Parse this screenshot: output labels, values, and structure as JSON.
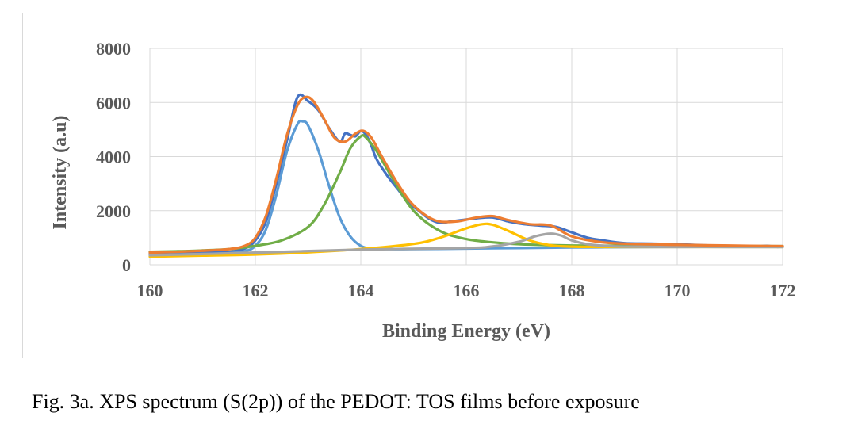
{
  "caption": "Fig. 3a. XPS spectrum (S(2p)) of the PEDOT: TOS films before exposure",
  "chart_data": {
    "type": "line",
    "title": "",
    "xlabel": "Binding Energy (eV)",
    "ylabel": "Intensity (a.u)",
    "xlim": [
      160,
      172
    ],
    "ylim": [
      0,
      8000
    ],
    "x_ticks": [
      160,
      162,
      164,
      166,
      168,
      170,
      172
    ],
    "y_ticks": [
      0,
      2000,
      4000,
      6000,
      8000
    ],
    "grid": true,
    "legend": "none",
    "series": [
      {
        "color": "#4472C4",
        "x": [
          160,
          160.5,
          161,
          161.5,
          161.8,
          162.0,
          162.2,
          162.4,
          162.6,
          162.8,
          163.0,
          163.2,
          163.4,
          163.6,
          163.7,
          163.8,
          163.9,
          164.0,
          164.1,
          164.2,
          164.3,
          164.5,
          164.7,
          164.9,
          165.1,
          165.3,
          165.5,
          165.7,
          165.9,
          166.2,
          166.5,
          166.8,
          167.1,
          167.4,
          167.7,
          168.0,
          168.3,
          168.6,
          169.0,
          169.5,
          170.0,
          170.5,
          171.0,
          171.5,
          171.7,
          171.9,
          172.0
        ],
        "y": [
          400,
          420,
          450,
          480,
          600,
          900,
          1600,
          3000,
          4600,
          6200,
          6050,
          5700,
          5050,
          4550,
          4850,
          4800,
          4750,
          4950,
          4800,
          4400,
          3900,
          3300,
          2800,
          2300,
          2000,
          1700,
          1550,
          1600,
          1650,
          1720,
          1750,
          1600,
          1500,
          1450,
          1400,
          1200,
          1000,
          900,
          800,
          780,
          760,
          720,
          700,
          680,
          700,
          660,
          680
        ]
      },
      {
        "color": "#5B9BD5",
        "x": [
          160,
          160.5,
          161,
          161.5,
          161.8,
          162.0,
          162.2,
          162.4,
          162.6,
          162.8,
          162.9,
          163.0,
          163.2,
          163.4,
          163.6,
          163.8,
          164.0,
          164.2,
          164.5,
          165.0,
          166.0,
          167.0,
          168.0,
          169.0,
          170.0,
          171.0,
          172.0
        ],
        "y": [
          370,
          380,
          400,
          430,
          500,
          700,
          1300,
          2600,
          4200,
          5200,
          5300,
          5150,
          4200,
          2900,
          1750,
          1050,
          700,
          600,
          580,
          580,
          600,
          620,
          640,
          650,
          660,
          660,
          660
        ]
      },
      {
        "color": "#70AD47",
        "x": [
          160,
          160.5,
          161,
          161.5,
          162.0,
          162.5,
          163.0,
          163.3,
          163.6,
          163.8,
          164.0,
          164.1,
          164.3,
          164.6,
          165.0,
          165.5,
          166.0,
          166.5,
          167.0,
          167.5,
          168.0,
          169.0,
          170.0,
          171.0,
          172.0
        ],
        "y": [
          480,
          500,
          530,
          580,
          700,
          900,
          1400,
          2200,
          3400,
          4300,
          4750,
          4700,
          4200,
          3200,
          2000,
          1250,
          950,
          830,
          760,
          730,
          710,
          700,
          690,
          690,
          690
        ]
      },
      {
        "color": "#FFC000",
        "x": [
          160,
          161,
          162,
          163,
          164,
          165,
          165.5,
          166.0,
          166.3,
          166.5,
          166.8,
          167.2,
          167.6,
          168.0,
          168.5,
          169.0,
          170.0,
          171.0,
          172.0
        ],
        "y": [
          300,
          340,
          380,
          460,
          580,
          770,
          1000,
          1350,
          1500,
          1480,
          1250,
          900,
          720,
          670,
          660,
          660,
          660,
          660,
          660
        ]
      },
      {
        "color": "#A5A5A5",
        "x": [
          160,
          162,
          164,
          166,
          166.5,
          167.0,
          167.3,
          167.6,
          167.8,
          168.0,
          168.3,
          168.7,
          169.0,
          170.0,
          171.0,
          172.0
        ],
        "y": [
          350,
          450,
          560,
          620,
          680,
          850,
          1050,
          1150,
          1080,
          900,
          760,
          690,
          670,
          660,
          660,
          660
        ]
      },
      {
        "color": "#ED7D31",
        "x": [
          160,
          160.5,
          161,
          161.5,
          161.8,
          162.0,
          162.2,
          162.4,
          162.6,
          162.8,
          162.95,
          163.1,
          163.3,
          163.5,
          163.7,
          163.9,
          164.05,
          164.2,
          164.4,
          164.7,
          165.0,
          165.4,
          165.8,
          166.2,
          166.5,
          166.8,
          167.2,
          167.6,
          168.0,
          168.5,
          169.0,
          170.0,
          171.0,
          172.0
        ],
        "y": [
          450,
          480,
          520,
          580,
          700,
          1000,
          1800,
          3200,
          4800,
          5900,
          6200,
          6050,
          5400,
          4700,
          4550,
          4850,
          4950,
          4700,
          4000,
          3000,
          2200,
          1650,
          1600,
          1750,
          1800,
          1650,
          1500,
          1450,
          1050,
          850,
          780,
          740,
          710,
          690
        ]
      }
    ]
  }
}
